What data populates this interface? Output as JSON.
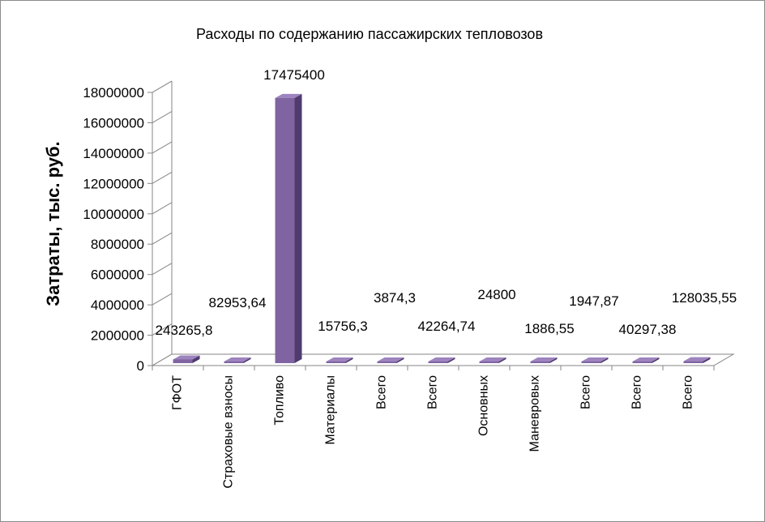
{
  "chart_data": {
    "type": "bar",
    "title": "Расходы по содержанию пассажирских тепловозов",
    "xlabel": "",
    "ylabel": "Затраты, тыс. руб.",
    "categories": [
      "ГФОТ",
      "Страховые взносы",
      "Топливо",
      "Материалы",
      "Всего",
      "Всего",
      "Основных",
      "Маневровых",
      "Всего",
      "Всего",
      "Всего"
    ],
    "values": [
      243265.8,
      82953.64,
      17475400,
      15756.3,
      3874.3,
      42264.74,
      24800,
      1886.55,
      1947.87,
      40297.38,
      128035.55
    ],
    "data_labels": [
      "243265,8",
      "82953,64",
      "17475400",
      "15756,3",
      "3874,3",
      "42264,74",
      "24800",
      "1886,55",
      "1947,87",
      "40297,38",
      "128035,55"
    ],
    "ylim": [
      0,
      18000000
    ],
    "yticks": [
      0,
      2000000,
      4000000,
      6000000,
      8000000,
      10000000,
      12000000,
      14000000,
      16000000,
      18000000
    ],
    "ytick_labels": [
      "0",
      "2000000",
      "4000000",
      "6000000",
      "8000000",
      "10000000",
      "12000000",
      "14000000",
      "16000000",
      "18000000"
    ],
    "grid": false,
    "legend": "none",
    "style": "3d-column",
    "colors": {
      "bar_front": "#8064a2",
      "bar_side": "#4f3b6e",
      "bar_top": "#9d84bf",
      "axis": "#868686",
      "frame": "#8c8c8c"
    }
  }
}
